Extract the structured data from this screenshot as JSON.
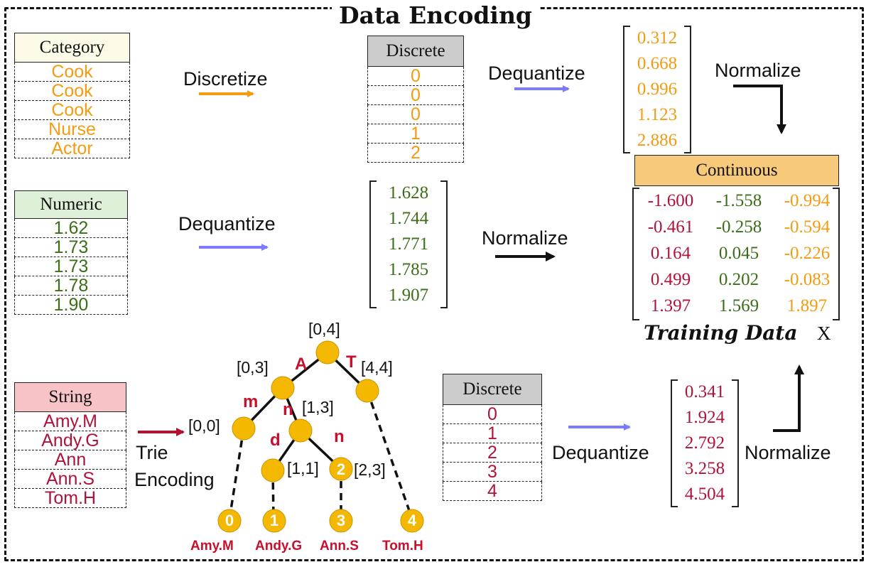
{
  "title": "Data Encoding",
  "colors": {
    "orange": "#f39c12",
    "green": "#3c6e1a",
    "red": "#b0133a",
    "arrow_blue": "#7b7bff",
    "arrow_orange": "#f39c12",
    "arrow_red": "#b3122e",
    "node_fill": "#f5b800"
  },
  "category": {
    "header": "Category",
    "values": [
      "Cook",
      "Cook",
      "Cook",
      "Nurse",
      "Actor"
    ]
  },
  "numeric": {
    "header": "Numeric",
    "values": [
      "1.62",
      "1.73",
      "1.73",
      "1.78",
      "1.90"
    ]
  },
  "string": {
    "header": "String",
    "values": [
      "Amy.M",
      "Andy.G",
      "Ann",
      "Ann.S",
      "Tom.H"
    ]
  },
  "discrete_top": {
    "header": "Discrete",
    "values": [
      "0",
      "0",
      "0",
      "1",
      "2"
    ]
  },
  "discrete_bottom": {
    "header": "Discrete",
    "values": [
      "0",
      "1",
      "2",
      "3",
      "4"
    ]
  },
  "labels": {
    "discretize": "Discretize",
    "dequantize_top": "Dequantize",
    "dequantize_mid": "Dequantize",
    "dequantize_bottom": "Dequantize",
    "normalize_top": "Normalize",
    "normalize_mid": "Normalize",
    "normalize_bottom": "Normalize",
    "trie_line1": "Trie",
    "trie_line2": "Encoding"
  },
  "vec_category": [
    "0.312",
    "0.668",
    "0.996",
    "1.123",
    "2.886"
  ],
  "vec_numeric": [
    "1.628",
    "1.744",
    "1.771",
    "1.785",
    "1.907"
  ],
  "vec_string": [
    "0.341",
    "1.924",
    "2.792",
    "3.258",
    "4.504"
  ],
  "continuous": {
    "header": "Continuous",
    "rows": [
      [
        "-1.600",
        "-1.558",
        "-0.994"
      ],
      [
        "-0.461",
        "-0.258",
        "-0.594"
      ],
      [
        "0.164",
        "0.045",
        "-0.226"
      ],
      [
        "0.499",
        "0.202",
        "-0.083"
      ],
      [
        "1.397",
        "1.569",
        "1.897"
      ]
    ]
  },
  "training_label": "Training Data",
  "training_symbol": "X",
  "trie": {
    "root": "[0,4]",
    "n_a": "[0,3]",
    "n_t": "[4,4]",
    "n_am": "[0,0]",
    "n_an": "[1,3]",
    "n_and": "[1,1]",
    "n_ann": "[2,3]",
    "edge_a": "A",
    "edge_t": "T",
    "edge_m": "m",
    "edge_n1": "n",
    "edge_d": "d",
    "edge_n2": "n",
    "inner_2": "2",
    "leaf_nums": [
      "0",
      "1",
      "3",
      "4"
    ],
    "leaf_names": [
      "Amy.M",
      "Andy.G",
      "Ann.S",
      "Tom.H"
    ]
  }
}
